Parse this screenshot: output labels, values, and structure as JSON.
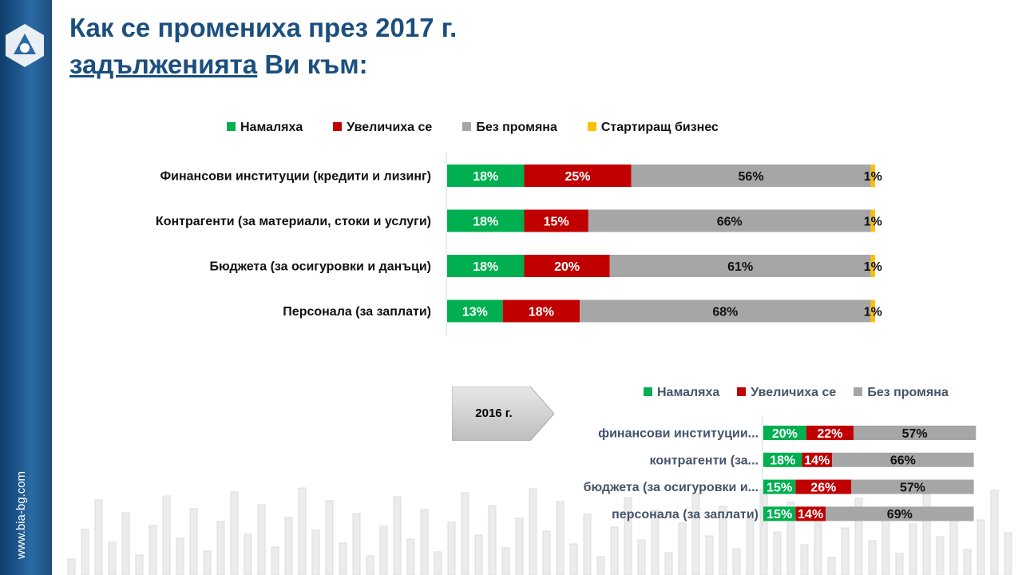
{
  "sidebar": {
    "url": "www.bia-bg.com"
  },
  "title": {
    "line1": "Как се промениха през 2017 г.",
    "line2_underlined": "задълженията",
    "line2_rest": " Ви към:"
  },
  "colors": {
    "decreased": "#00b050",
    "increased": "#c00000",
    "unchanged": "#a6a6a6",
    "startup": "#ffc000"
  },
  "badge": {
    "label": "2016 г."
  },
  "chart_data": [
    {
      "type": "bar",
      "orientation": "horizontal-stacked",
      "title": "2017",
      "legend": [
        "Намаляха",
        "Увеличиха се",
        "Без промяна",
        "Стартиращ бизнес"
      ],
      "legend_position": "top",
      "categories": [
        "Финансови  институции (кредити и лизинг)",
        "Контрагенти  (за материали, стоки и услуги)",
        "Бюджета  (за осигуровки  и данъци)",
        "Персонала  (за заплати)"
      ],
      "series": [
        {
          "name": "Намаляха",
          "values": [
            18,
            18,
            18,
            13
          ]
        },
        {
          "name": "Увеличиха се",
          "values": [
            25,
            15,
            20,
            18
          ]
        },
        {
          "name": "Без промяна",
          "values": [
            56,
            66,
            61,
            68
          ]
        },
        {
          "name": "Стартиращ бизнес",
          "values": [
            1,
            1,
            1,
            1
          ]
        }
      ],
      "xlim": [
        0,
        100
      ]
    },
    {
      "type": "bar",
      "orientation": "horizontal-stacked",
      "title": "2016 г.",
      "legend": [
        "Намаляха",
        "Увеличиха се",
        "Без промяна"
      ],
      "legend_position": "top-right",
      "categories": [
        "финансови  институции...",
        "контрагенти  (за...",
        "бюджета  (за осигуровки  и...",
        "персонала  (за заплати)"
      ],
      "series": [
        {
          "name": "Намаляха",
          "values": [
            20,
            18,
            15,
            15
          ]
        },
        {
          "name": "Увеличиха се",
          "values": [
            22,
            14,
            26,
            14
          ]
        },
        {
          "name": "Без промяна",
          "values": [
            57,
            66,
            57,
            69
          ]
        }
      ],
      "xlim": [
        0,
        100
      ]
    }
  ]
}
